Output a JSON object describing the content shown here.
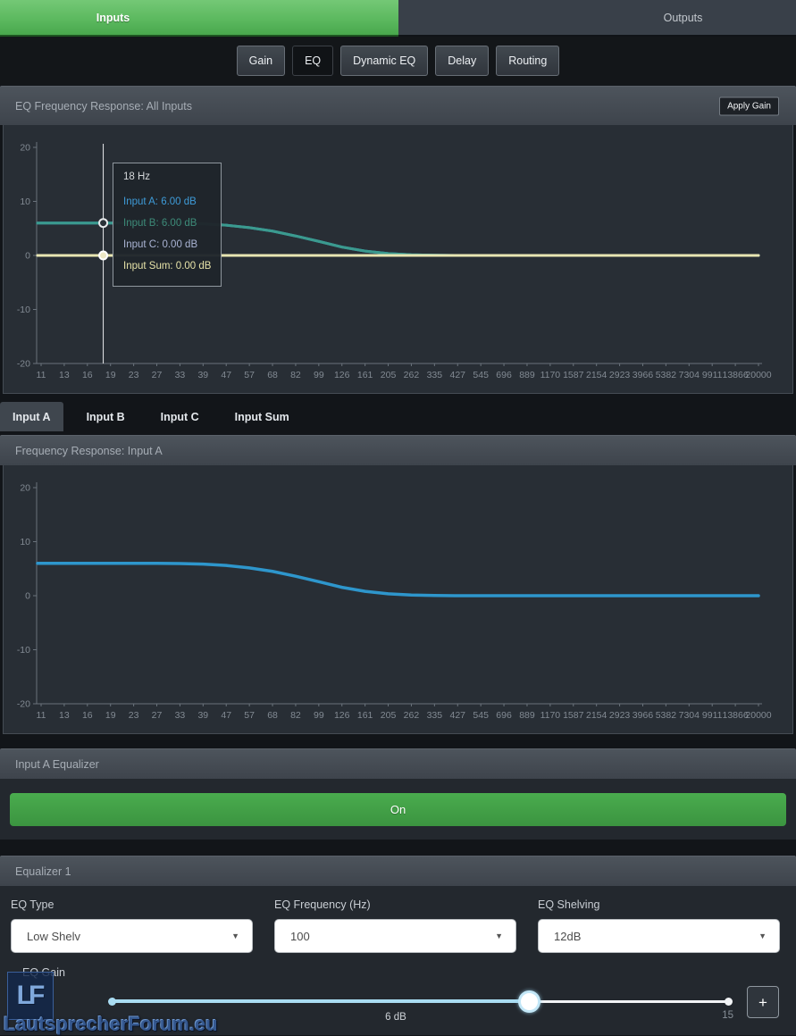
{
  "header": {
    "tabs": [
      {
        "label": "Inputs",
        "active": true
      },
      {
        "label": "Outputs",
        "active": false
      }
    ]
  },
  "subnav": {
    "buttons": [
      {
        "label": "Gain",
        "active": false
      },
      {
        "label": "EQ",
        "active": true
      },
      {
        "label": "Dynamic EQ",
        "active": false
      },
      {
        "label": "Delay",
        "active": false
      },
      {
        "label": "Routing",
        "active": false
      }
    ]
  },
  "panel_all_inputs": {
    "title": "EQ Frequency Response: All Inputs",
    "apply_gain_label": "Apply Gain"
  },
  "input_tabs": [
    {
      "label": "Input A",
      "active": true
    },
    {
      "label": "Input B",
      "active": false
    },
    {
      "label": "Input C",
      "active": false
    },
    {
      "label": "Input Sum",
      "active": false
    }
  ],
  "panel_input_a": {
    "title": "Frequency Response: Input A"
  },
  "panel_eq_onoff": {
    "title": "Input A Equalizer",
    "on_label": "On"
  },
  "panel_equalizer1": {
    "title": "Equalizer 1",
    "eq_type": {
      "label": "EQ Type",
      "value": "Low Shelv"
    },
    "eq_frequency": {
      "label": "EQ Frequency (Hz)",
      "value": "100"
    },
    "eq_shelving": {
      "label": "EQ Shelving",
      "value": "12dB"
    },
    "eq_gain": {
      "label": "EQ Gain",
      "value_label": "6 dB",
      "max_label": "15",
      "value": 6,
      "min": -15,
      "max": 15
    },
    "add_button_label": "+"
  },
  "watermark": {
    "logo_text": "LF",
    "text": "LautsprecherForum.eu"
  },
  "colors": {
    "accent_green": "#4aa84d",
    "input_a_blue": "#2e96cc",
    "input_b_teal": "#3b9a8e",
    "input_c_gray": "#a9b3d1",
    "input_sum_yellow": "#e9e6b2",
    "chart_bg": "#282e35",
    "panel_header": "#454c54"
  },
  "chart_data": [
    {
      "type": "line",
      "title": "EQ Frequency Response: All Inputs",
      "x_scale": "log",
      "xunit": "Hz",
      "yunit": "dB",
      "ylim": [
        -20,
        20
      ],
      "grid": false,
      "x_ticks": [
        11,
        13,
        16,
        19,
        23,
        27,
        33,
        39,
        47,
        57,
        68,
        82,
        99,
        126,
        161,
        205,
        262,
        335,
        427,
        545,
        696,
        889,
        1170,
        1587,
        2154,
        2923,
        3966,
        5382,
        7304,
        9911,
        13866,
        20000
      ],
      "y_ticks": [
        20,
        10,
        0,
        -10,
        -20
      ],
      "series": [
        {
          "name": "Input A",
          "color": "#2e96cc",
          "width": 3,
          "points": [
            [
              11,
              6
            ],
            [
              16,
              6
            ],
            [
              19,
              6
            ],
            [
              23,
              6
            ],
            [
              27,
              6
            ],
            [
              33,
              5.95
            ],
            [
              39,
              5.85
            ],
            [
              47,
              5.6
            ],
            [
              57,
              5.15
            ],
            [
              68,
              4.5
            ],
            [
              82,
              3.6
            ],
            [
              99,
              2.6
            ],
            [
              126,
              1.55
            ],
            [
              161,
              0.8
            ],
            [
              205,
              0.35
            ],
            [
              262,
              0.12
            ],
            [
              335,
              0.04
            ],
            [
              427,
              0
            ],
            [
              545,
              0
            ],
            [
              20000,
              0
            ]
          ]
        },
        {
          "name": "Input B",
          "color": "#3b9a8e",
          "width": 3,
          "points": [
            [
              11,
              6
            ],
            [
              16,
              6
            ],
            [
              19,
              6
            ],
            [
              23,
              6
            ],
            [
              27,
              6
            ],
            [
              33,
              5.95
            ],
            [
              39,
              5.85
            ],
            [
              47,
              5.6
            ],
            [
              57,
              5.15
            ],
            [
              68,
              4.5
            ],
            [
              82,
              3.6
            ],
            [
              99,
              2.6
            ],
            [
              126,
              1.55
            ],
            [
              161,
              0.8
            ],
            [
              205,
              0.35
            ],
            [
              262,
              0.12
            ],
            [
              335,
              0.04
            ],
            [
              427,
              0
            ],
            [
              545,
              0
            ],
            [
              20000,
              0
            ]
          ]
        },
        {
          "name": "Input C",
          "color": "#a9b3d1",
          "width": 3,
          "points": [
            [
              11,
              0
            ],
            [
              20000,
              0
            ]
          ]
        },
        {
          "name": "Input Sum",
          "color": "#e9e6b2",
          "width": 3,
          "points": [
            [
              11,
              0
            ],
            [
              20000,
              0
            ]
          ]
        }
      ],
      "cursor": {
        "freq": 18,
        "line_color": "#e8eaec",
        "markers": [
          {
            "db": 6,
            "fill": "#2a3138",
            "stroke": "#e8eaec"
          },
          {
            "db": 0,
            "fill": "#ece7c4",
            "stroke": "#ffffff"
          }
        ]
      },
      "tooltip": {
        "header": "18 Hz",
        "rows": [
          {
            "text": "Input A: 6.00 dB",
            "color": "#3e9bd8"
          },
          {
            "text": "Input B: 6.00 dB",
            "color": "#3d8a78"
          },
          {
            "text": "Input C: 0.00 dB",
            "color": "#aab4d4"
          },
          {
            "text": "Input Sum: 0.00 dB",
            "color": "#e6e2a8"
          }
        ]
      }
    },
    {
      "type": "line",
      "title": "Frequency Response: Input A",
      "x_scale": "log",
      "xunit": "Hz",
      "yunit": "dB",
      "ylim": [
        -20,
        20
      ],
      "grid": false,
      "x_ticks": [
        11,
        13,
        16,
        19,
        23,
        27,
        33,
        39,
        47,
        57,
        68,
        82,
        99,
        126,
        161,
        205,
        262,
        335,
        427,
        545,
        696,
        889,
        1170,
        1587,
        2154,
        2923,
        3966,
        5382,
        7304,
        9911,
        13866,
        20000
      ],
      "y_ticks": [
        20,
        10,
        0,
        -10,
        -20
      ],
      "series": [
        {
          "name": "Input A",
          "color": "#2e96cc",
          "width": 3.5,
          "points": [
            [
              11,
              6
            ],
            [
              16,
              6
            ],
            [
              19,
              6
            ],
            [
              23,
              6
            ],
            [
              27,
              6
            ],
            [
              33,
              5.95
            ],
            [
              39,
              5.85
            ],
            [
              47,
              5.6
            ],
            [
              57,
              5.15
            ],
            [
              68,
              4.5
            ],
            [
              82,
              3.6
            ],
            [
              99,
              2.6
            ],
            [
              126,
              1.55
            ],
            [
              161,
              0.8
            ],
            [
              205,
              0.35
            ],
            [
              262,
              0.12
            ],
            [
              335,
              0.04
            ],
            [
              427,
              0
            ],
            [
              545,
              0
            ],
            [
              20000,
              0
            ]
          ]
        }
      ]
    }
  ]
}
